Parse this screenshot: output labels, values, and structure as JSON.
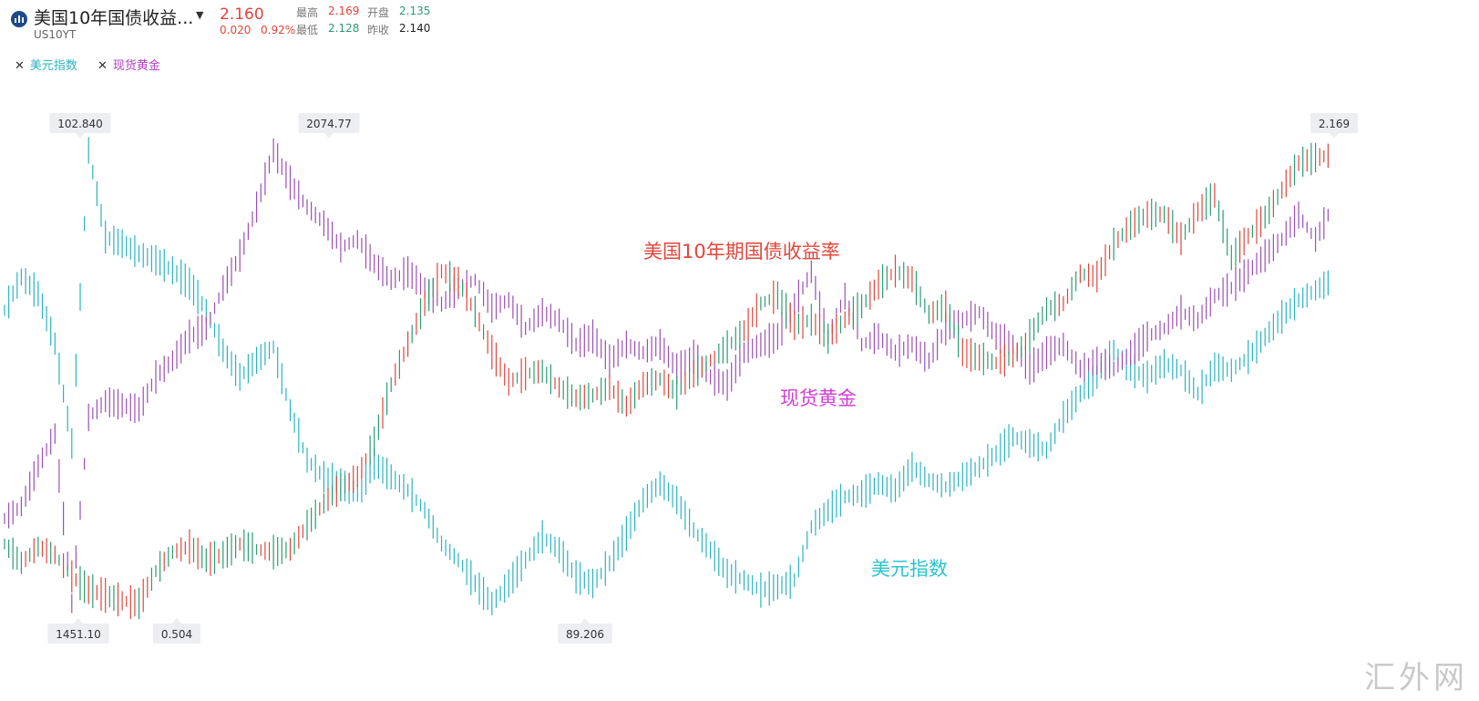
{
  "header": {
    "title": "美国10年国债收益...",
    "symbol": "US10YT",
    "price": "2.160",
    "change": "0.020",
    "change_pct": "0.92%",
    "stats": {
      "high_label": "最高",
      "high": "2.169",
      "open_label": "开盘",
      "open": "2.135",
      "low_label": "最低",
      "low": "2.128",
      "prev_label": "昨收",
      "prev": "2.140"
    }
  },
  "legend": {
    "items": [
      {
        "label": "美元指数",
        "color": "#2bb3c0"
      },
      {
        "label": "现货黄金",
        "color": "#b23fc4"
      }
    ]
  },
  "colors": {
    "up": "#e0463b",
    "down": "#2a9d72",
    "dxy": "#2bb3c0",
    "gold": "#9b4fb4",
    "gold_label": "#d13fd6",
    "us10y_label": "#e0463b",
    "dxy_label": "#2bc3cf"
  },
  "chart_data": {
    "type": "bar",
    "subtype": "ohlc-overlay",
    "series": [
      {
        "name": "美国10年期国债收益率",
        "high_marker": "2.169",
        "low_marker": "0.504",
        "values": [
          0.72,
          0.65,
          0.71,
          0.68,
          0.6,
          0.55,
          0.53,
          0.51,
          0.5,
          0.62,
          0.69,
          0.71,
          0.66,
          0.68,
          0.72,
          0.7,
          0.69,
          0.7,
          0.79,
          0.87,
          0.93,
          0.97,
          1.1,
          1.31,
          1.46,
          1.61,
          1.73,
          1.69,
          1.58,
          1.43,
          1.32,
          1.35,
          1.36,
          1.3,
          1.26,
          1.27,
          1.3,
          1.23,
          1.31,
          1.33,
          1.28,
          1.35,
          1.4,
          1.45,
          1.51,
          1.61,
          1.64,
          1.53,
          1.55,
          1.48,
          1.55,
          1.6,
          1.68,
          1.73,
          1.7,
          1.57,
          1.6,
          1.43,
          1.41,
          1.39,
          1.41,
          1.49,
          1.59,
          1.61,
          1.72,
          1.71,
          1.83,
          1.9,
          1.94,
          1.94,
          1.85,
          1.95,
          2.01,
          1.78,
          1.86,
          1.93,
          2.03,
          2.13,
          2.15,
          2.16
        ]
      },
      {
        "name": "现货黄金",
        "high_marker": "2074.77",
        "low_marker": "1451.10",
        "values": [
          1575,
          1590,
          1640,
          1680,
          1470,
          1700,
          1720,
          1715,
          1710,
          1750,
          1770,
          1800,
          1810,
          1860,
          1900,
          1960,
          2030,
          1990,
          1960,
          1940,
          1910,
          1920,
          1890,
          1870,
          1880,
          1860,
          1840,
          1860,
          1870,
          1835,
          1845,
          1810,
          1830,
          1820,
          1790,
          1800,
          1770,
          1790,
          1780,
          1790,
          1760,
          1775,
          1750,
          1740,
          1780,
          1790,
          1800,
          1840,
          1880,
          1800,
          1850,
          1790,
          1800,
          1780,
          1790,
          1770,
          1810,
          1820,
          1830,
          1800,
          1790,
          1760,
          1780,
          1790,
          1760,
          1770,
          1760,
          1780,
          1800,
          1810,
          1830,
          1820,
          1850,
          1860,
          1880,
          1900,
          1920,
          1950,
          1920,
          1960
        ]
      },
      {
        "name": "美元指数",
        "high_marker": "102.840",
        "low_marker": "89.206",
        "values": [
          98.0,
          99.0,
          98.5,
          97.0,
          94.0,
          102.8,
          100.2,
          100.0,
          99.7,
          99.5,
          99.2,
          98.8,
          98.0,
          96.8,
          96.0,
          96.5,
          96.9,
          95.0,
          93.5,
          93.0,
          92.8,
          92.5,
          93.4,
          93.0,
          92.6,
          92.0,
          91.0,
          90.5,
          89.8,
          89.2,
          89.8,
          90.5,
          91.2,
          90.8,
          90.0,
          89.8,
          90.4,
          91.3,
          92.3,
          92.8,
          92.3,
          91.4,
          90.8,
          90.1,
          89.9,
          89.6,
          89.7,
          89.9,
          91.5,
          92.0,
          92.4,
          92.5,
          92.8,
          92.6,
          93.3,
          92.9,
          92.7,
          93.0,
          93.3,
          93.7,
          94.2,
          94.0,
          93.8,
          94.8,
          95.5,
          96.0,
          96.8,
          96.2,
          96.0,
          96.4,
          96.2,
          95.5,
          96.3,
          96.2,
          96.6,
          97.2,
          97.8,
          98.3,
          98.6,
          98.9
        ]
      }
    ]
  },
  "annotations": {
    "us10y": "美国10年期国债收益率",
    "gold": "现货黄金",
    "dxy": "美元指数"
  },
  "watermark": "汇外网"
}
